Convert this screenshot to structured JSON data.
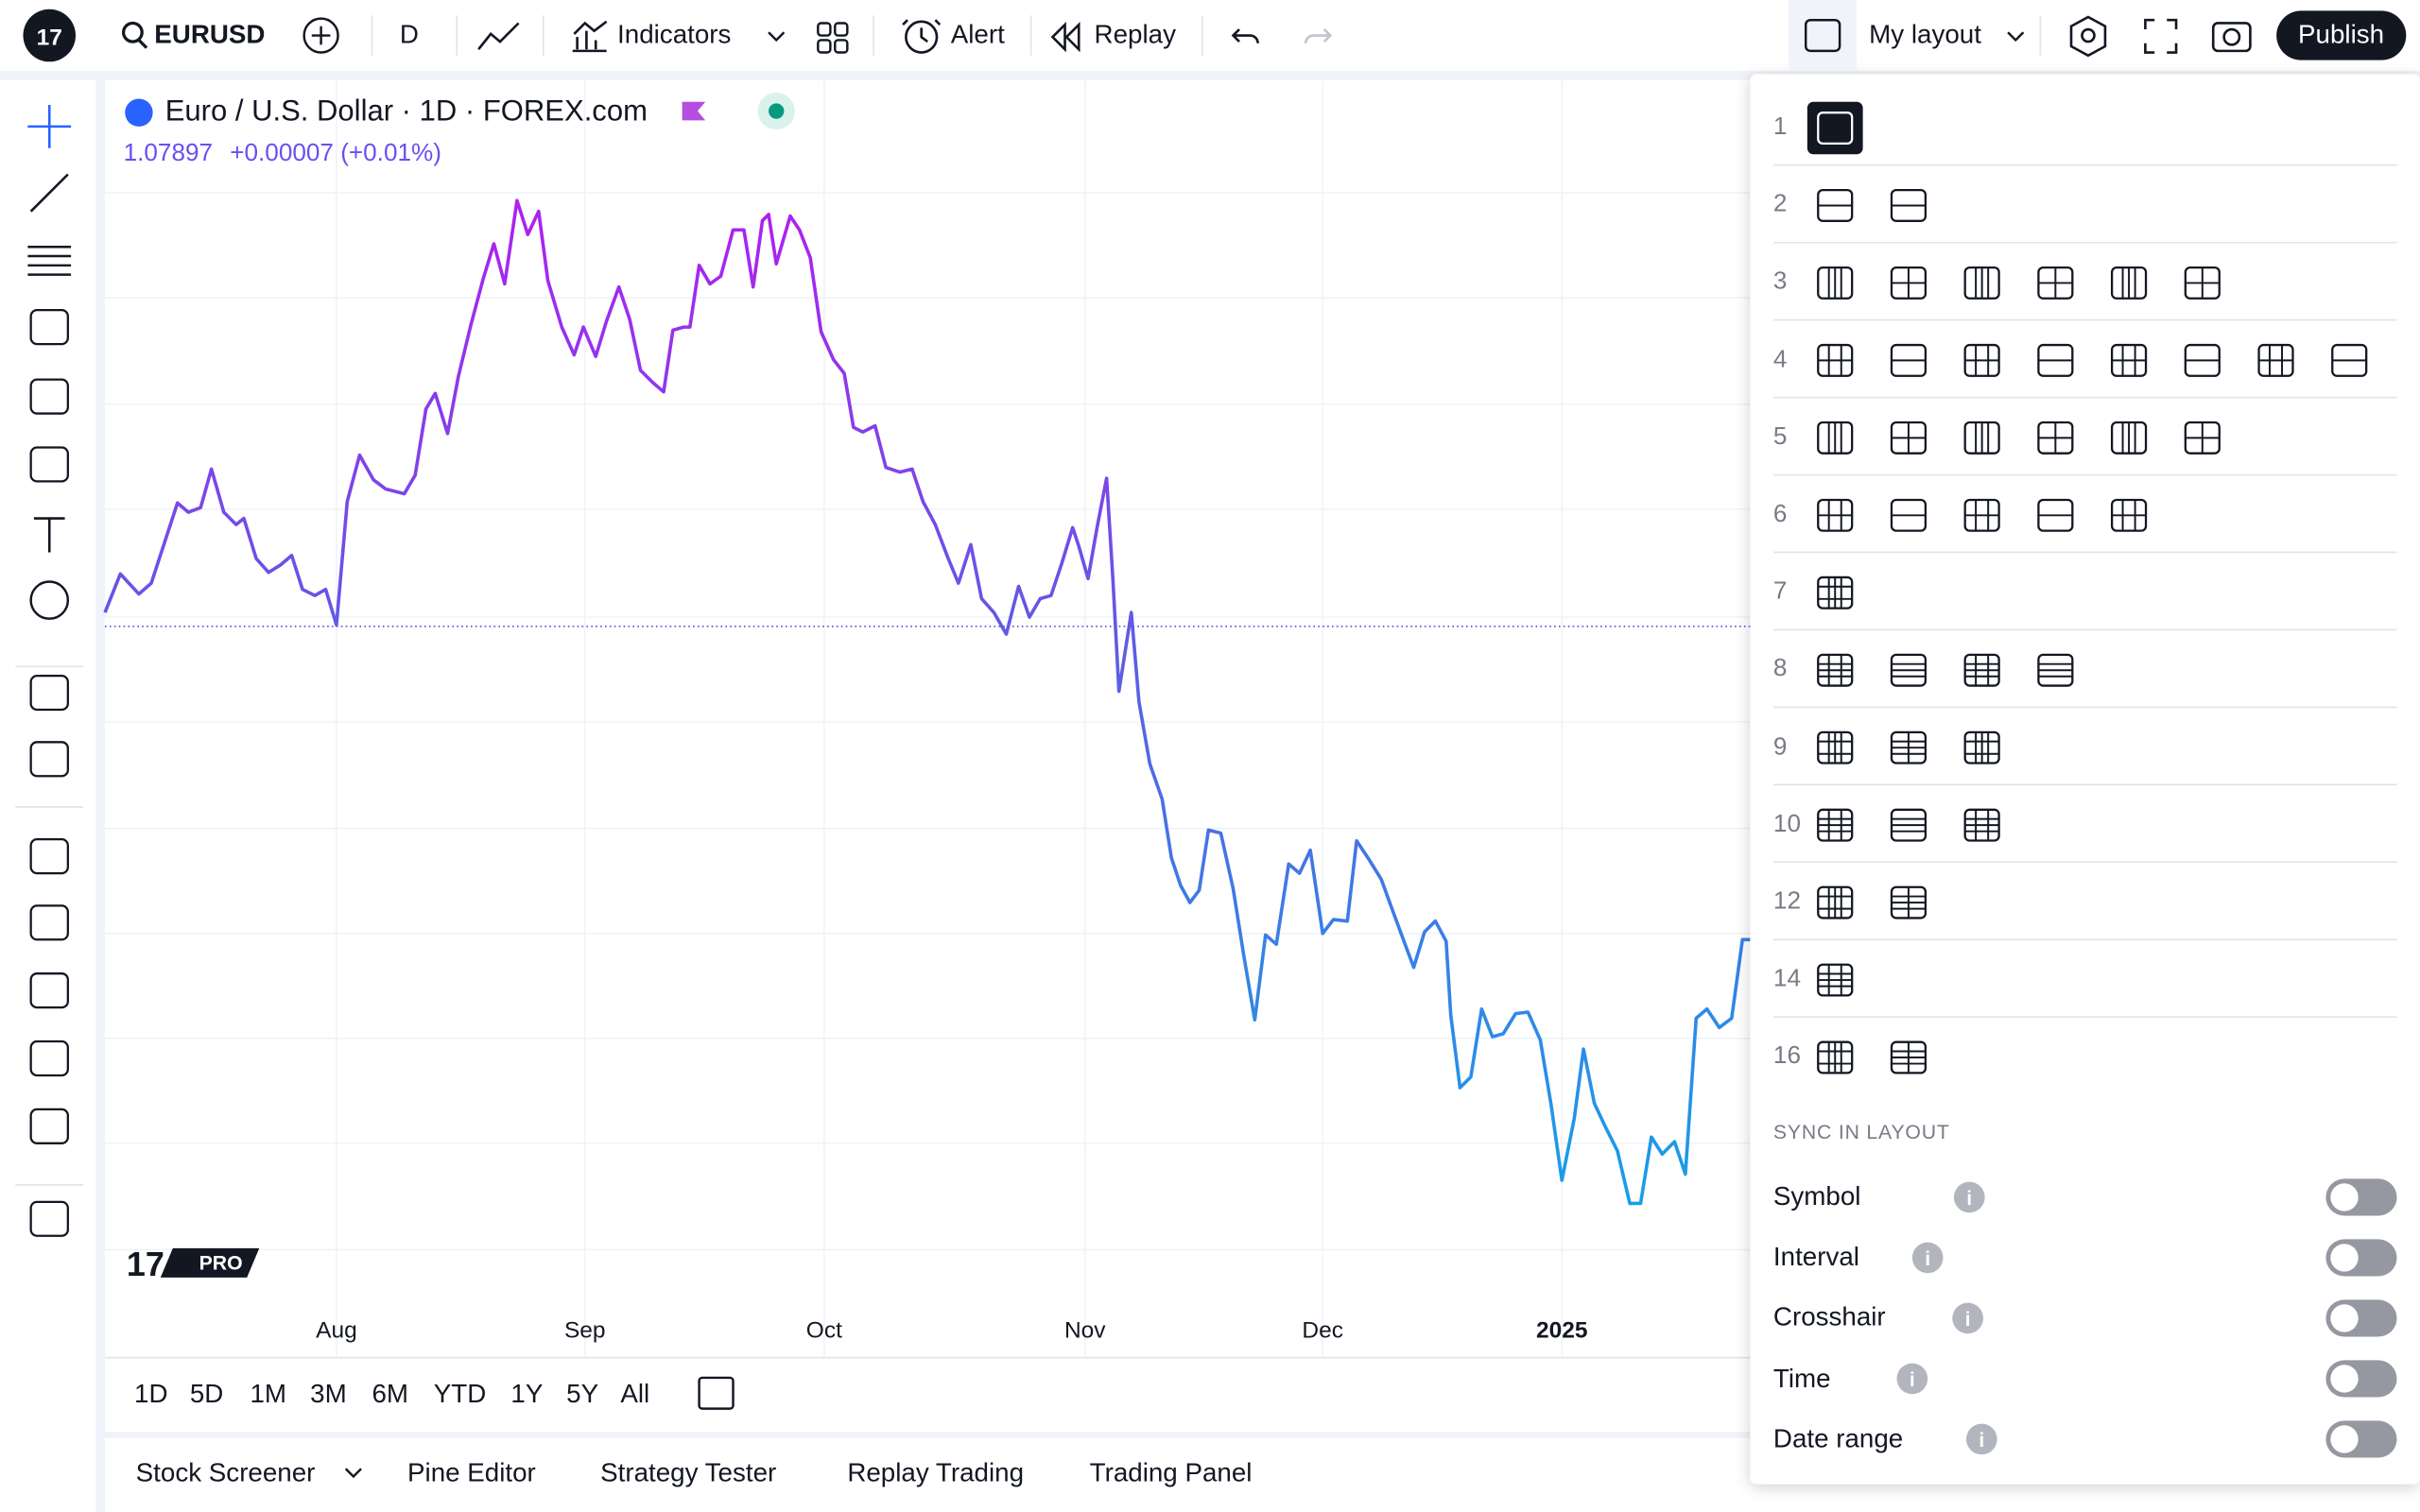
{
  "toolbar": {
    "symbol": "EURUSD",
    "interval": "D",
    "indicators": "Indicators",
    "alert": "Alert",
    "replay": "Replay",
    "layout": "My layout",
    "publish": "Publish"
  },
  "chart": {
    "title": "Euro / U.S. Dollar · 1D · FOREX.com",
    "price": "1.07897",
    "change": "+0.00007 (+0.01%)",
    "x_labels": [
      "Aug",
      "Sep",
      "Oct",
      "Nov",
      "Dec",
      "2025"
    ],
    "logo": "PRO"
  },
  "ranges": [
    "1D",
    "5D",
    "1M",
    "3M",
    "6M",
    "YTD",
    "1Y",
    "5Y",
    "All"
  ],
  "bottom_tabs": [
    "Stock Screener",
    "Pine Editor",
    "Strategy Tester",
    "Replay Trading",
    "Trading Panel"
  ],
  "layout_menu": {
    "rows": [
      "1",
      "2",
      "3",
      "4",
      "5",
      "6",
      "7",
      "8",
      "9",
      "10",
      "12",
      "14",
      "16"
    ],
    "sync_heading": "SYNC IN LAYOUT",
    "sync_items": [
      "Symbol",
      "Interval",
      "Crosshair",
      "Time",
      "Date range"
    ]
  }
}
